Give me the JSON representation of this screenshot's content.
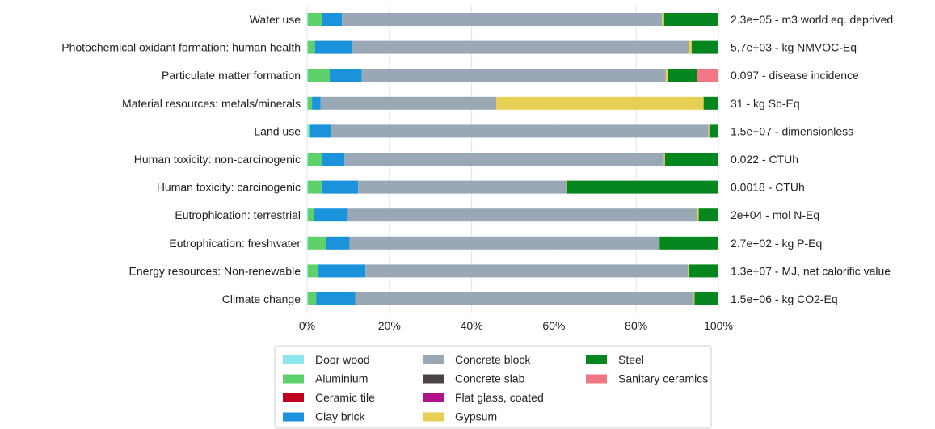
{
  "chart_data": {
    "type": "bar",
    "orientation": "horizontal",
    "stacked": true,
    "normalized": true,
    "xlim": [
      0,
      1
    ],
    "x_tick_labels": [
      "0%",
      "20%",
      "40%",
      "60%",
      "80%",
      "100%"
    ],
    "grid": true,
    "legend_placement": "bottom-center",
    "categories": [
      "Water use",
      "Photochemical oxidant formation: human health",
      "Particulate matter formation",
      "Material resources: metals/minerals",
      "Land use",
      "Human toxicity: non-carcinogenic",
      "Human toxicity: carcinogenic",
      "Eutrophication: terrestrial",
      "Eutrophication: freshwater",
      "Energy resources: Non-renewable",
      "Climate change"
    ],
    "totals": [
      "2.3e+05 - m3 world eq. deprived",
      "5.7e+03 - kg NMVOC-Eq",
      "0.097 - disease incidence",
      "31 - kg Sb-Eq",
      "1.5e+07 - dimensionless",
      "0.022 - CTUh",
      "0.0018 - CTUh",
      "2e+04 - mol N-Eq",
      "2.7e+02 - kg P-Eq",
      "1.3e+07 - MJ, net calorific value",
      "1.5e+06 - kg CO2-Eq"
    ],
    "series": [
      {
        "name": "Door wood",
        "color": "#8ee6f0",
        "values": [
          0.002,
          0.002,
          0.002,
          0.002,
          0.004,
          0.002,
          0.002,
          0.002,
          0.002,
          0.002,
          0.002
        ]
      },
      {
        "name": "Aluminium",
        "color": "#5ed16a",
        "values": [
          0.034,
          0.017,
          0.053,
          0.01,
          0.003,
          0.033,
          0.033,
          0.015,
          0.044,
          0.025,
          0.02
        ]
      },
      {
        "name": "Ceramic tile",
        "color": "#c00020",
        "values": [
          0,
          0,
          0,
          0,
          0,
          0,
          0,
          0,
          0,
          0,
          0
        ]
      },
      {
        "name": "Clay brick",
        "color": "#1a93dc",
        "values": [
          0.049,
          0.091,
          0.078,
          0.021,
          0.05,
          0.056,
          0.089,
          0.082,
          0.057,
          0.115,
          0.095
        ]
      },
      {
        "name": "Concrete block",
        "color": "#9aa8b5",
        "values": [
          0.778,
          0.818,
          0.739,
          0.427,
          0.919,
          0.777,
          0.507,
          0.848,
          0.753,
          0.784,
          0.823
        ]
      },
      {
        "name": "Concrete slab",
        "color": "#4a4244",
        "values": [
          0,
          0,
          0,
          0,
          0,
          0,
          0,
          0,
          0,
          0,
          0
        ]
      },
      {
        "name": "Flat glass, coated",
        "color": "#b0128a",
        "values": [
          0,
          0,
          0,
          0,
          0,
          0,
          0,
          0,
          0,
          0,
          0
        ]
      },
      {
        "name": "Gypsum",
        "color": "#e6cf52",
        "values": [
          0.005,
          0.007,
          0.006,
          0.504,
          0.002,
          0.002,
          0.001,
          0.005,
          0.001,
          0.002,
          0.002
        ]
      },
      {
        "name": "Steel",
        "color": "#05861f",
        "values": [
          0.132,
          0.065,
          0.07,
          0.036,
          0.022,
          0.13,
          0.368,
          0.048,
          0.143,
          0.072,
          0.058
        ]
      },
      {
        "name": "Sanitary ceramics",
        "color": "#f07783",
        "values": [
          0,
          0,
          0.052,
          0,
          0,
          0,
          0,
          0,
          0,
          0,
          0
        ]
      }
    ]
  }
}
